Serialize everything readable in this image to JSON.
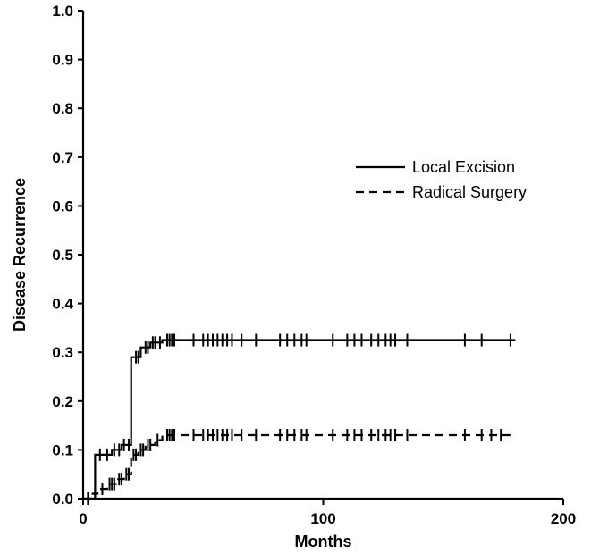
{
  "chart_data": {
    "type": "line",
    "title": "",
    "xlabel": "Months",
    "ylabel": "Disease Recurrence",
    "xlim": [
      0,
      200
    ],
    "ylim": [
      0,
      1.0
    ],
    "x_ticks": [
      0,
      100,
      200
    ],
    "y_ticks": [
      0.0,
      0.1,
      0.2,
      0.3,
      0.4,
      0.5,
      0.6,
      0.7,
      0.8,
      0.9,
      1.0
    ],
    "x_tick_labels": [
      "0",
      "100",
      "200"
    ],
    "y_tick_labels": [
      "0.0",
      "0.1",
      "0.2",
      "0.3",
      "0.4",
      "0.5",
      "0.6",
      "0.7",
      "0.8",
      "0.9",
      "1.0"
    ],
    "grid": false,
    "legend_position": "right",
    "series": [
      {
        "name": "Local Excision",
        "style": "solid",
        "steps": [
          [
            0,
            0.0
          ],
          [
            5,
            0.0
          ],
          [
            5,
            0.09
          ],
          [
            12,
            0.09
          ],
          [
            12,
            0.1
          ],
          [
            16,
            0.1
          ],
          [
            16,
            0.11
          ],
          [
            20,
            0.11
          ],
          [
            20,
            0.29
          ],
          [
            24,
            0.29
          ],
          [
            24,
            0.31
          ],
          [
            28,
            0.31
          ],
          [
            28,
            0.32
          ],
          [
            33,
            0.32
          ],
          [
            33,
            0.325
          ],
          [
            180,
            0.325
          ]
        ],
        "censored": [
          7,
          10,
          13,
          15,
          17,
          19,
          22,
          23,
          26,
          27,
          29,
          30,
          32,
          35,
          36,
          37,
          38,
          46,
          50,
          52,
          54,
          56,
          58,
          60,
          62,
          66,
          72,
          82,
          85,
          88,
          91,
          93,
          104,
          110,
          113,
          116,
          120,
          123,
          126,
          128,
          130,
          135,
          159,
          166,
          178
        ]
      },
      {
        "name": "Radical Surgery",
        "style": "dashed",
        "steps": [
          [
            0,
            0.0
          ],
          [
            4,
            0.0
          ],
          [
            4,
            0.01
          ],
          [
            6,
            0.01
          ],
          [
            6,
            0.02
          ],
          [
            10,
            0.02
          ],
          [
            10,
            0.03
          ],
          [
            14,
            0.03
          ],
          [
            14,
            0.04
          ],
          [
            17,
            0.04
          ],
          [
            17,
            0.05
          ],
          [
            20,
            0.05
          ],
          [
            20,
            0.09
          ],
          [
            23,
            0.09
          ],
          [
            23,
            0.1
          ],
          [
            26,
            0.1
          ],
          [
            26,
            0.11
          ],
          [
            30,
            0.11
          ],
          [
            30,
            0.12
          ],
          [
            33,
            0.12
          ],
          [
            33,
            0.13
          ],
          [
            178,
            0.13
          ]
        ],
        "censored": [
          2,
          5,
          8,
          11,
          12,
          13,
          15,
          16,
          18,
          19,
          21,
          22,
          24,
          25,
          27,
          28,
          31,
          35,
          36,
          37,
          38,
          46,
          50,
          52,
          54,
          56,
          58,
          60,
          62,
          66,
          72,
          82,
          85,
          88,
          91,
          93,
          104,
          110,
          113,
          116,
          120,
          123,
          126,
          128,
          130,
          135,
          159,
          166,
          170,
          174
        ]
      }
    ]
  }
}
